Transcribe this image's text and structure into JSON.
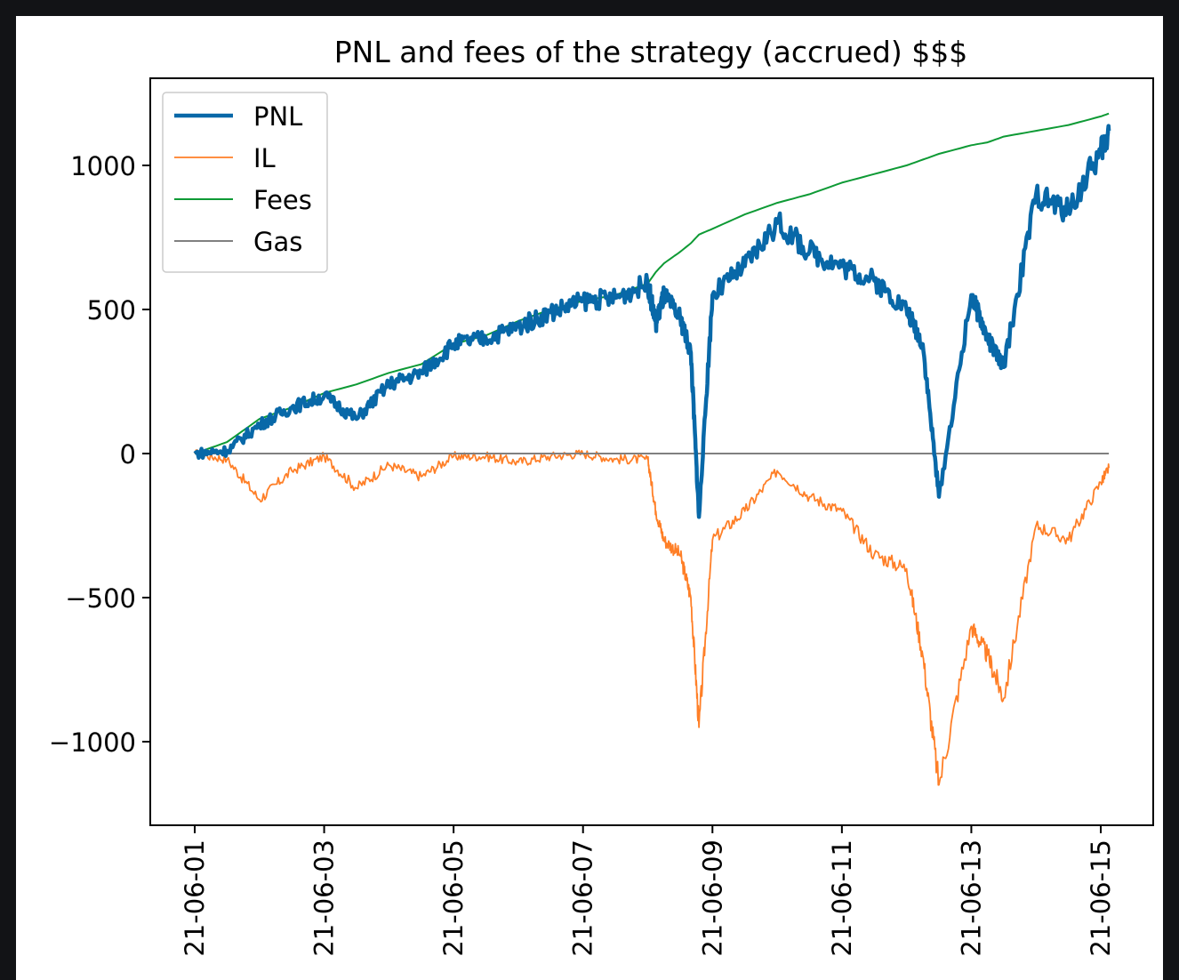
{
  "chart_data": {
    "type": "line",
    "title": "PNL and fees of the strategy (accrued) $$$",
    "xlabel": "",
    "ylabel": "",
    "xlim": [
      "2021-06-01",
      "2021-06-15"
    ],
    "ylim": [
      -1300,
      1300
    ],
    "x_ticks": [
      "21-06-01",
      "21-06-03",
      "21-06-05",
      "21-06-07",
      "21-06-09",
      "21-06-11",
      "21-06-13",
      "21-06-15"
    ],
    "y_ticks": [
      1000,
      500,
      0,
      -500,
      -1000
    ],
    "y_tick_labels": [
      "1000",
      "500",
      "0",
      "−500",
      "−1000"
    ],
    "legend_position": "top-left",
    "grid": false,
    "colors": {
      "PNL": "#0868a8",
      "IL": "#ff7f27",
      "Fees": "#0e9a35",
      "Gas": "#808080"
    },
    "x": [
      "06-01 00:00",
      "06-01 12:00",
      "06-02 00:00",
      "06-02 12:00",
      "06-03 00:00",
      "06-03 12:00",
      "06-04 00:00",
      "06-04 12:00",
      "06-05 00:00",
      "06-05 12:00",
      "06-06 00:00",
      "06-06 12:00",
      "06-07 00:00",
      "06-07 12:00",
      "06-08 00:00",
      "06-08 03:00",
      "06-08 06:00",
      "06-08 12:00",
      "06-08 16:00",
      "06-08 19:00",
      "06-09 00:00",
      "06-09 12:00",
      "06-10 00:00",
      "06-10 12:00",
      "06-11 00:00",
      "06-11 12:00",
      "06-12 00:00",
      "06-12 06:00",
      "06-12 12:00",
      "06-13 00:00",
      "06-13 06:00",
      "06-13 12:00",
      "06-14 00:00",
      "06-14 12:00",
      "06-15 00:00",
      "06-15 03:00"
    ],
    "series": [
      {
        "name": "PNL",
        "values": [
          0,
          10,
          100,
          160,
          200,
          120,
          240,
          280,
          380,
          400,
          440,
          490,
          530,
          540,
          590,
          450,
          550,
          470,
          350,
          -220,
          550,
          650,
          800,
          700,
          650,
          600,
          500,
          380,
          -150,
          550,
          400,
          300,
          900,
          840,
          1050,
          1120
        ]
      },
      {
        "name": "IL",
        "values": [
          0,
          -20,
          -160,
          -60,
          -10,
          -120,
          -40,
          -80,
          -10,
          -10,
          -30,
          -10,
          0,
          -20,
          -20,
          -200,
          -300,
          -350,
          -500,
          -950,
          -300,
          -200,
          -60,
          -150,
          -200,
          -350,
          -400,
          -700,
          -1150,
          -600,
          -700,
          -850,
          -250,
          -300,
          -100,
          -50
        ]
      },
      {
        "name": "Fees",
        "values": [
          0,
          40,
          120,
          160,
          210,
          240,
          280,
          310,
          380,
          410,
          460,
          500,
          530,
          550,
          590,
          630,
          660,
          700,
          730,
          760,
          780,
          830,
          870,
          900,
          940,
          970,
          1000,
          1020,
          1040,
          1070,
          1080,
          1100,
          1120,
          1140,
          1170,
          1180
        ]
      },
      {
        "name": "Gas",
        "values": [
          0,
          0,
          0,
          0,
          0,
          0,
          0,
          0,
          0,
          0,
          0,
          0,
          0,
          0,
          0,
          0,
          0,
          0,
          0,
          0,
          0,
          0,
          0,
          0,
          0,
          0,
          0,
          0,
          0,
          0,
          0,
          0,
          0,
          0,
          0,
          0
        ]
      }
    ]
  }
}
